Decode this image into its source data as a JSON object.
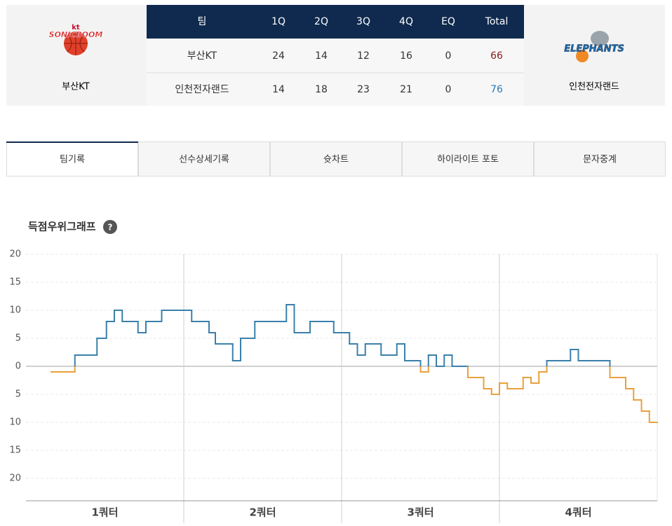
{
  "scoreboard": {
    "header": [
      "팀",
      "1Q",
      "2Q",
      "3Q",
      "4Q",
      "EQ",
      "Total"
    ],
    "rows": [
      [
        "부산KT",
        24,
        14,
        12,
        16,
        0,
        66
      ],
      [
        "인천전자랜드",
        14,
        18,
        23,
        21,
        0,
        76
      ]
    ],
    "home": {
      "name": "부산KT",
      "logo_top": "kt",
      "logo_text": "SONICBOOM",
      "total_color": "#8b1a1a"
    },
    "away": {
      "name": "인천전자랜드",
      "logo_text": "ELEPHANTS",
      "total_color": "#2a7ab8"
    }
  },
  "tabs": [
    "팀기록",
    "선수상세기록",
    "슛차트",
    "하이라이트 포토",
    "문자중계"
  ],
  "chart_data": {
    "type": "line",
    "title": "득점우위그래프",
    "help_icon": "?",
    "categories": [
      "1쿼터",
      "2쿼터",
      "3쿼터",
      "4쿼터"
    ],
    "x": [
      1.6,
      3.1,
      4.5,
      5.1,
      5.6,
      6.1,
      7.1,
      7.6,
      8.6,
      10.5,
      11.6,
      12.0,
      13.1,
      13.6,
      14.5,
      16.5,
      17.0,
      18.0,
      19.5,
      20.5,
      21.0,
      21.5,
      22.5,
      23.5,
      24.0,
      25.0,
      25.5,
      26.0,
      26.5,
      27.0,
      28.0,
      29.0,
      29.5,
      30.0,
      30.5,
      31.5,
      32.0,
      32.5,
      33.0,
      34.5,
      35.0,
      37.0,
      38.0,
      38.5,
      39.0,
      39.5
    ],
    "values": [
      -1,
      2,
      5,
      8,
      10,
      8,
      6,
      8,
      10,
      8,
      6,
      4,
      1,
      5,
      8,
      11,
      6,
      8,
      6,
      4,
      2,
      4,
      2,
      4,
      1,
      -1,
      2,
      0,
      2,
      0,
      -2,
      -4,
      -5,
      -3,
      -4,
      -2,
      -3,
      -1,
      1,
      3,
      1,
      -2,
      -4,
      -6,
      -8,
      -10
    ],
    "xlim": [
      0,
      40
    ],
    "ylim": [
      -24,
      20
    ],
    "yticks": [
      20,
      15,
      10,
      5,
      0,
      {
        "value": -5,
        "label": "5"
      },
      {
        "value": -10,
        "label": "10"
      },
      {
        "value": -15,
        "label": "15"
      },
      {
        "value": -20,
        "label": "20"
      }
    ],
    "grid": true,
    "color_above": "#3a80ab",
    "color_below": "#e9a03c"
  }
}
